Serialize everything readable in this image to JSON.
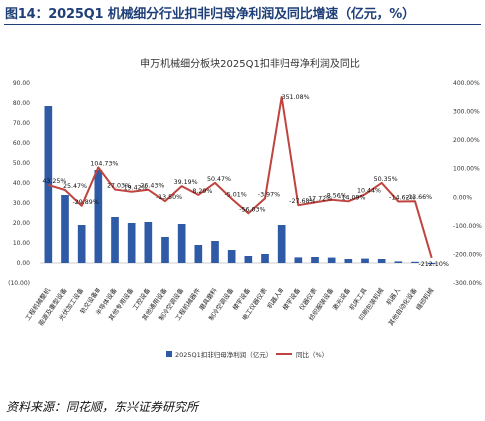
{
  "figure_title": "图14：2025Q1 机械细分行业扣非归母净利润及同比增速（亿元，%）",
  "source_note": "资料来源：同花顺，东兴证券研究所",
  "chart_data": {
    "type": "bar",
    "title": "申万机械细分板块2025Q1扣非归母净利润及同比",
    "categories": [
      "工程机械整机",
      "能源及重型设备",
      "光伏加工设备",
      "轨交设备Ⅲ",
      "半导体设备",
      "其他专用设备",
      "工控设备",
      "其他通用设备",
      "制冷空调设备",
      "工程机械器件",
      "磨具磨料",
      "制冷空调设备",
      "楼宇设备",
      "电工仪器仪表",
      "机器人Ⅲ",
      "楼宇设备",
      "仪器仪表",
      "纺织服装设备",
      "激光设备",
      "机床工具",
      "印刷包装机械",
      "机器人",
      "其他自动化设备",
      "缝纫机械"
    ],
    "series": [
      {
        "name": "2025Q1扣非归母净利润（亿元）",
        "type": "bar",
        "axis": "left",
        "values": [
          78.5,
          34.0,
          19.0,
          46.5,
          23.0,
          20.0,
          20.5,
          13.0,
          19.5,
          9.0,
          11.0,
          6.5,
          3.5,
          4.5,
          19.0,
          2.8,
          3.0,
          2.7,
          2.0,
          2.2,
          2.0,
          0.8,
          0.6,
          -0.6
        ]
      },
      {
        "name": "同比（%）",
        "type": "line",
        "axis": "right",
        "values": [
          43.25,
          25.47,
          -29.89,
          104.73,
          27.03,
          19.42,
          26.43,
          -13.5,
          39.19,
          8.29,
          50.47,
          -5.01,
          -56.03,
          -3.97,
          351.08,
          -27.68,
          -17.72,
          -8.56,
          -14.09,
          10.44,
          50.35,
          -14.62,
          -13.66,
          -212.1
        ]
      }
    ],
    "labels": [
      "43.25%",
      "25.47%",
      "-29.89%",
      "104.73%",
      "27.03%",
      "19.42%",
      "26.43%",
      "-13.50%",
      "39.19%",
      "8.29%",
      "50.47%",
      "-5.01%",
      "-56.03%",
      "-3.97%",
      "351.08%",
      "-27.68%",
      "-17.72%",
      "-8.56%",
      "-14.09%",
      "10.44%",
      "50.35%",
      "-14.62%",
      "-13.66%",
      "-212.10%"
    ],
    "left_axis": {
      "ylim": [
        -10,
        90
      ],
      "ticks": [
        "(10.00)",
        "0.00",
        "10.00",
        "20.00",
        "30.00",
        "40.00",
        "50.00",
        "60.00",
        "70.00",
        "80.00",
        "90.00"
      ]
    },
    "right_axis": {
      "ylim": [
        -300,
        400
      ],
      "ticks": [
        "-300.00%",
        "-200.00%",
        "-100.00%",
        "0.00%",
        "100.00%",
        "200.00%",
        "300.00%",
        "400.00%"
      ]
    },
    "legend_position": "bottom",
    "grid": false,
    "colors": {
      "bar": "#2f5aa6",
      "line": "#c0443e",
      "title": "#1f3f78",
      "negative_tick": "#c00000"
    }
  }
}
